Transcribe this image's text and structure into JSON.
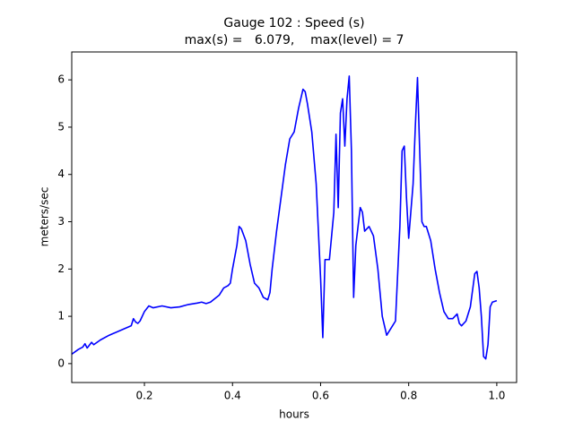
{
  "chart_data": {
    "type": "line",
    "title": "Gauge 102 : Speed (s)",
    "subtitle": "max(s) =   6.079,    max(level) = 7",
    "x_label": "hours",
    "y_label": "meters/sec",
    "xlim": [
      0.035,
      1.045
    ],
    "ylim": [
      -0.4,
      6.59
    ],
    "xticks": [
      0.2,
      0.4,
      0.6,
      0.8,
      {
        "value": 1,
        "label": "1.0"
      }
    ],
    "yticks": [
      0,
      1,
      2,
      3,
      4,
      5,
      6
    ],
    "grid": false,
    "series": [
      {
        "name": "speed",
        "color": "#0000ff",
        "x": [
          0.035,
          0.05,
          0.06,
          0.065,
          0.07,
          0.08,
          0.085,
          0.1,
          0.12,
          0.15,
          0.17,
          0.175,
          0.18,
          0.185,
          0.19,
          0.2,
          0.21,
          0.22,
          0.24,
          0.26,
          0.28,
          0.3,
          0.32,
          0.33,
          0.34,
          0.35,
          0.37,
          0.38,
          0.39,
          0.395,
          0.4,
          0.41,
          0.415,
          0.42,
          0.43,
          0.44,
          0.45,
          0.46,
          0.47,
          0.48,
          0.485,
          0.49,
          0.5,
          0.51,
          0.52,
          0.53,
          0.54,
          0.55,
          0.56,
          0.565,
          0.57,
          0.58,
          0.59,
          0.6,
          0.605,
          0.61,
          0.62,
          0.63,
          0.635,
          0.64,
          0.645,
          0.65,
          0.655,
          0.66,
          0.665,
          0.67,
          0.675,
          0.68,
          0.69,
          0.695,
          0.7,
          0.71,
          0.72,
          0.73,
          0.74,
          0.75,
          0.76,
          0.77,
          0.78,
          0.785,
          0.79,
          0.795,
          0.8,
          0.81,
          0.815,
          0.82,
          0.825,
          0.83,
          0.835,
          0.84,
          0.85,
          0.86,
          0.87,
          0.88,
          0.89,
          0.9,
          0.91,
          0.915,
          0.92,
          0.93,
          0.94,
          0.95,
          0.955,
          0.96,
          0.965,
          0.97,
          0.975,
          0.98,
          0.985,
          0.99,
          1.0
        ],
        "values": [
          0.2,
          0.3,
          0.35,
          0.42,
          0.33,
          0.45,
          0.4,
          0.5,
          0.6,
          0.72,
          0.8,
          0.95,
          0.88,
          0.85,
          0.9,
          1.1,
          1.22,
          1.18,
          1.22,
          1.18,
          1.2,
          1.25,
          1.28,
          1.3,
          1.27,
          1.3,
          1.45,
          1.6,
          1.65,
          1.7,
          2.0,
          2.5,
          2.9,
          2.85,
          2.6,
          2.1,
          1.7,
          1.6,
          1.4,
          1.35,
          1.5,
          2.0,
          2.8,
          3.5,
          4.2,
          4.75,
          4.9,
          5.4,
          5.8,
          5.75,
          5.5,
          4.9,
          3.8,
          1.8,
          0.55,
          2.2,
          2.2,
          3.2,
          4.85,
          3.3,
          5.3,
          5.6,
          4.6,
          5.6,
          6.079,
          4.5,
          1.4,
          2.5,
          3.3,
          3.2,
          2.8,
          2.9,
          2.7,
          2.0,
          1.0,
          0.6,
          0.75,
          0.9,
          2.9,
          4.5,
          4.6,
          3.5,
          2.65,
          3.8,
          5.0,
          6.05,
          4.5,
          3.0,
          2.9,
          2.9,
          2.6,
          2.0,
          1.5,
          1.1,
          0.95,
          0.95,
          1.05,
          0.85,
          0.8,
          0.9,
          1.2,
          1.9,
          1.95,
          1.6,
          1.0,
          0.15,
          0.1,
          0.4,
          1.2,
          1.3,
          1.33
        ]
      }
    ]
  }
}
